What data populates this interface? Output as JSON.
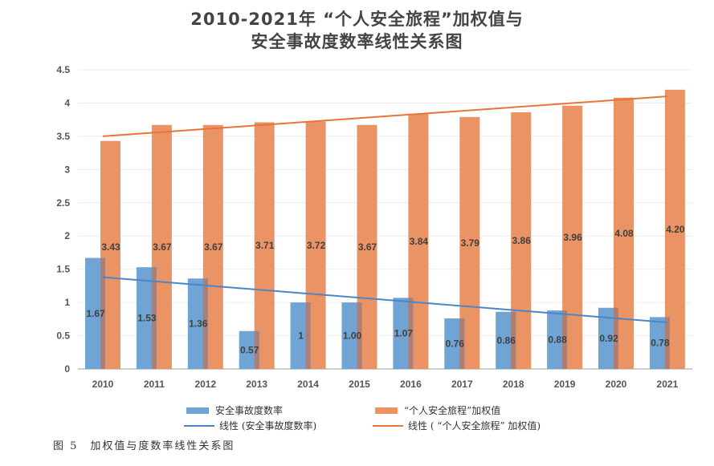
{
  "chart_data": {
    "type": "bar",
    "title": "2010-2021年 “个人安全旅程”加权值与",
    "subtitle": "安全事故度数率线性关系图",
    "xlabel": "",
    "ylabel": "",
    "ylim": [
      0,
      4.5
    ],
    "yticks": [
      "0",
      "0.5",
      "1",
      "1.5",
      "2",
      "2.5",
      "3",
      "3.5",
      "4",
      "4.5"
    ],
    "ytick_values": [
      0,
      0.5,
      1,
      1.5,
      2,
      2.5,
      3,
      3.5,
      4,
      4.5
    ],
    "grid": true,
    "categories": [
      "2010",
      "2011",
      "2012",
      "2013",
      "2014",
      "2015",
      "2016",
      "2017",
      "2018",
      "2019",
      "2020",
      "2021"
    ],
    "series": [
      {
        "name": "安全事故度数率",
        "kind": "bar",
        "color": "#6fa4d4",
        "values": [
          1.67,
          1.53,
          1.36,
          0.57,
          1,
          1.0,
          1.07,
          0.76,
          0.86,
          0.88,
          0.92,
          0.78
        ],
        "labels": [
          "1.67",
          "1.53",
          "1.36",
          "0.57",
          "1",
          "1.00",
          "1.07",
          "0.76",
          "0.86",
          "0.88",
          "0.92",
          "0.78"
        ]
      },
      {
        "name": "“个人安全旅程”加权值",
        "kind": "bar",
        "color": "#ea9365",
        "values": [
          3.43,
          3.67,
          3.67,
          3.71,
          3.72,
          3.67,
          3.84,
          3.79,
          3.86,
          3.96,
          4.08,
          4.2
        ],
        "labels": [
          "3.43",
          "3.67",
          "3.67",
          "3.71",
          "3.72",
          "3.67",
          "3.84",
          "3.79",
          "3.86",
          "3.96",
          "4.08",
          "4.20"
        ]
      },
      {
        "name": "线性 (安全事故度数率)",
        "kind": "trendline",
        "color": "#4a86c8",
        "values": [
          1.38,
          0.7
        ]
      },
      {
        "name": "线性 (“个人安全旅程”加权值)",
        "kind": "trendline",
        "color": "#e8743b",
        "values": [
          3.5,
          4.1
        ]
      }
    ],
    "legend": "bottom"
  },
  "legend": {
    "items": [
      {
        "label": "安全事故度数率",
        "color": "#6fa4d4"
      },
      {
        "label": "“个人安全旅程”加权值",
        "color": "#ea9365"
      },
      {
        "label": "线性 (安全事故度数率)",
        "color": "#4a86c8"
      },
      {
        "label": "线性 ( “个人安全旅程” 加权值)",
        "color": "#e8743b"
      }
    ]
  },
  "caption": "图 5　加权值与度数率线性关系图"
}
